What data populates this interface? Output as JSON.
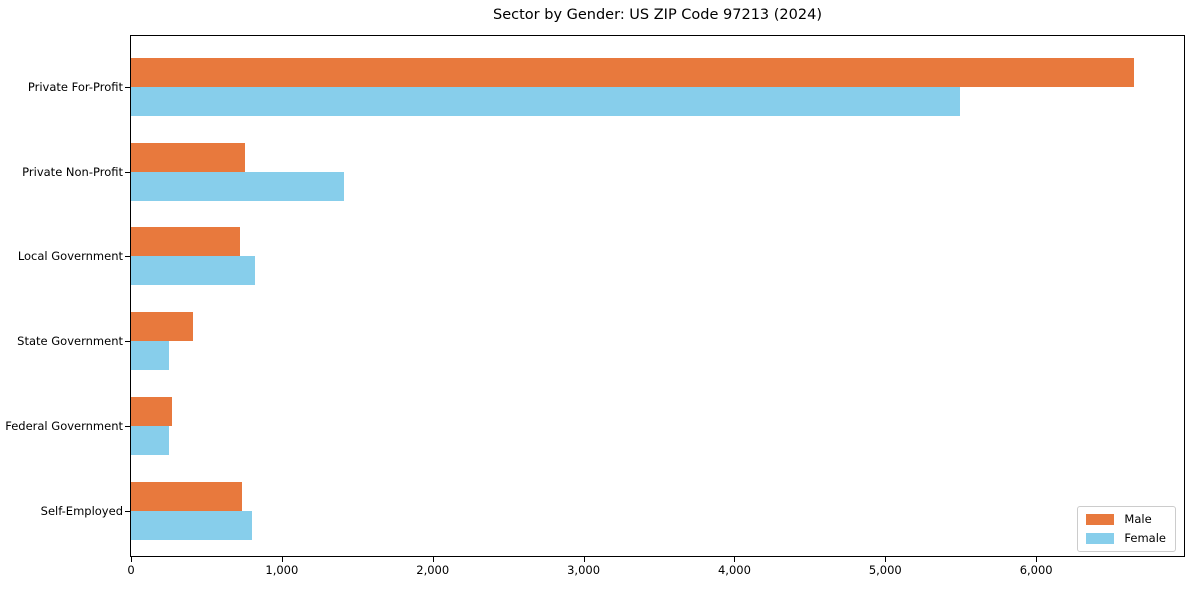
{
  "chart_data": {
    "type": "bar",
    "orientation": "horizontal",
    "title": "Sector by Gender: US ZIP Code 97213 (2024)",
    "categories": [
      "Private For-Profit",
      "Private Non-Profit",
      "Local Government",
      "State Government",
      "Federal Government",
      "Self-Employed"
    ],
    "series": [
      {
        "name": "Male",
        "color": "#e8793d",
        "values": [
          6650,
          755,
          720,
          410,
          270,
          735
        ]
      },
      {
        "name": "Female",
        "color": "#87ceeb",
        "values": [
          5495,
          1415,
          820,
          250,
          255,
          800
        ]
      }
    ],
    "xlabel": "",
    "ylabel": "",
    "xlim": [
      0,
      6980
    ],
    "xticks": [
      0,
      1000,
      2000,
      3000,
      4000,
      5000,
      6000
    ],
    "xtick_labels": [
      "0",
      "1,000",
      "2,000",
      "3,000",
      "4,000",
      "5,000",
      "6,000"
    ],
    "grid": false,
    "legend": {
      "position": "lower right",
      "entries": [
        "Male",
        "Female"
      ]
    }
  },
  "colors": {
    "male": "#e8793d",
    "female": "#87ceeb",
    "spine": "#000000",
    "legend_border": "#cccccc",
    "background": "#ffffff"
  }
}
